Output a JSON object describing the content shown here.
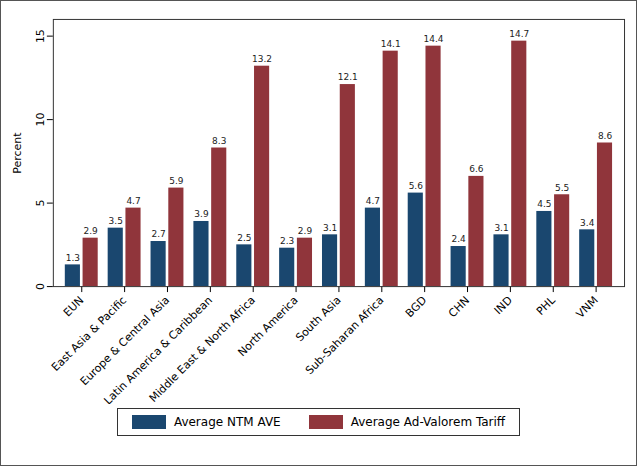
{
  "chart_data": {
    "type": "bar",
    "y_label": "Percent",
    "categories": [
      "EUN",
      "East Asia & Pacific",
      "Europe & Central Asia",
      "Latin America & Caribbean",
      "Middle East & North Africa",
      "North America",
      "South Asia",
      "Sub-Saharan Africa",
      "BGD",
      "CHN",
      "IND",
      "PHL",
      "VNM"
    ],
    "series": [
      {
        "name": "Average NTM AVE",
        "color": "#1a476f",
        "values": [
          1.3,
          3.5,
          2.7,
          3.9,
          2.5,
          2.3,
          3.1,
          4.7,
          5.6,
          2.4,
          3.1,
          4.5,
          3.4
        ]
      },
      {
        "name": "Average Ad-Valorem Tariff",
        "color": "#90353b",
        "values": [
          2.9,
          4.7,
          5.9,
          8.3,
          13.2,
          2.9,
          12.1,
          14.1,
          14.4,
          6.6,
          14.7,
          5.5,
          8.6
        ]
      }
    ],
    "ylim": [
      0,
      16
    ],
    "yticks": [
      0,
      5,
      10,
      15
    ],
    "grid": false,
    "data_labels": true,
    "legend": "bottom"
  }
}
